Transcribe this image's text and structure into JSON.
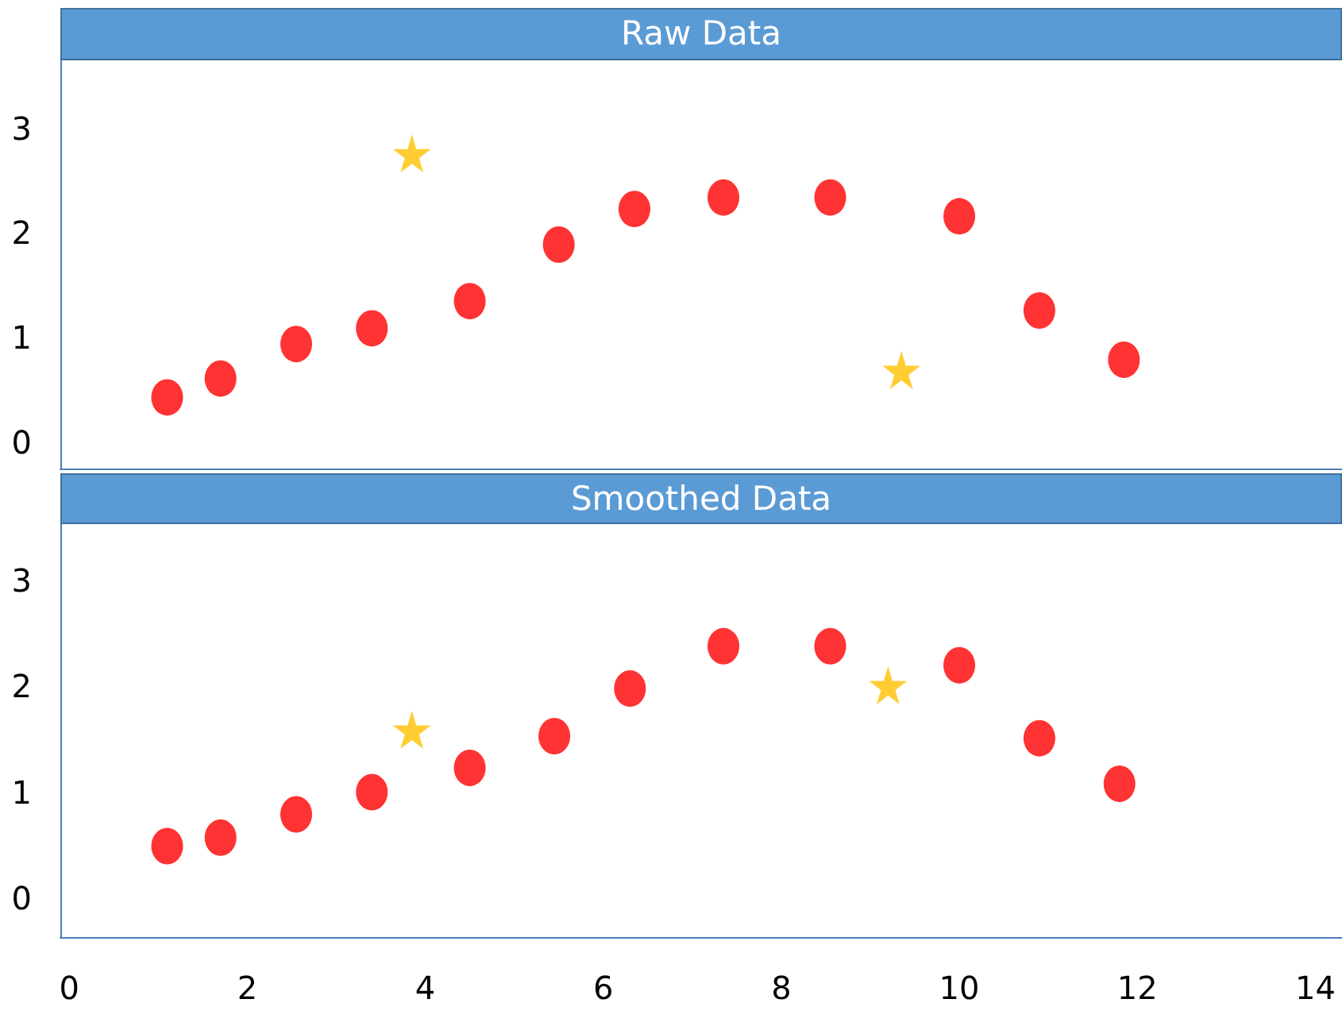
{
  "chart_data": [
    {
      "type": "scatter",
      "title": "Raw Data",
      "xlim": [
        -0.1,
        14.3
      ],
      "xticks": [
        0,
        2,
        4,
        6,
        8,
        10,
        12,
        14
      ],
      "ylim": [
        -0.25,
        3.65
      ],
      "yticks": [
        0,
        1,
        2,
        3
      ],
      "tick_labels": "y",
      "series": [
        {
          "color": "#ff0000",
          "marker": "circle",
          "x": [
            1.1,
            1.7,
            2.55,
            3.4,
            4.5,
            5.5,
            6.35,
            7.35,
            8.55,
            10.0,
            10.9,
            11.85
          ],
          "values": [
            0.43,
            0.61,
            0.94,
            1.09,
            1.35,
            1.89,
            2.23,
            2.34,
            2.34,
            2.16,
            1.26,
            0.79
          ]
        },
        {
          "color": "#ffc000",
          "marker": "star",
          "x": [
            3.85,
            9.35
          ],
          "values": [
            2.76,
            0.69
          ]
        }
      ]
    },
    {
      "type": "scatter",
      "title": "Smoothed Data",
      "xlim": [
        -0.1,
        14.3
      ],
      "xticks": [
        0,
        2,
        4,
        6,
        8,
        10,
        12,
        14
      ],
      "ylim": [
        -0.37,
        3.55
      ],
      "yticks": [
        0,
        1,
        2,
        3
      ],
      "series": [
        {
          "color": "#ff0000",
          "marker": "circle",
          "x": [
            1.1,
            1.7,
            2.55,
            3.4,
            4.5,
            5.45,
            6.3,
            7.35,
            8.55,
            10.0,
            10.9,
            11.8
          ],
          "values": [
            0.49,
            0.57,
            0.79,
            1.0,
            1.23,
            1.53,
            1.98,
            2.38,
            2.38,
            2.2,
            1.51,
            1.08
          ]
        },
        {
          "color": "#ffc000",
          "marker": "star",
          "x": [
            3.85,
            9.2
          ],
          "values": [
            1.59,
            2.01
          ]
        }
      ]
    }
  ]
}
